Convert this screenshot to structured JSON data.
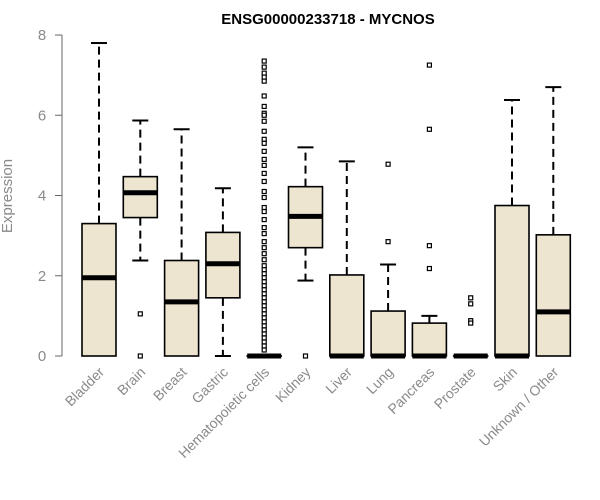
{
  "chart_data": {
    "type": "boxplot",
    "title": "ENSG00000233718 - MYCNOS",
    "xlabel": "",
    "ylabel": "Expression",
    "ylim": [
      0,
      8
    ],
    "yticks": [
      0,
      2,
      4,
      6,
      8
    ],
    "grid": false,
    "legend": "none",
    "colors": {
      "box_fill": "#ede5cf",
      "stroke": "#000000",
      "axis": "#666666",
      "tick_label": "#8a8a8a"
    },
    "categories": [
      "Bladder",
      "Brain",
      "Breast",
      "Gastric",
      "Hematopoietic cells",
      "Kidney",
      "Liver",
      "Lung",
      "Pancreas",
      "Prostate",
      "Skin",
      "Unknown / Other"
    ],
    "boxes": [
      {
        "category": "Bladder",
        "whisker_low": 0,
        "q1": 0,
        "median": 1.95,
        "q3": 3.3,
        "whisker_high": 7.8,
        "outliers": []
      },
      {
        "category": "Brain",
        "whisker_low": 2.38,
        "q1": 3.45,
        "median": 4.07,
        "q3": 4.47,
        "whisker_high": 5.87,
        "outliers": [
          1.05,
          0
        ]
      },
      {
        "category": "Breast",
        "whisker_low": 0,
        "q1": 0,
        "median": 1.35,
        "q3": 2.38,
        "whisker_high": 5.65,
        "outliers": []
      },
      {
        "category": "Gastric",
        "whisker_low": 0,
        "q1": 1.45,
        "median": 2.3,
        "q3": 3.08,
        "whisker_high": 4.18,
        "outliers": []
      },
      {
        "category": "Hematopoietic cells",
        "whisker_low": 0,
        "q1": 0,
        "median": 0,
        "q3": 0,
        "whisker_high": 0,
        "outliers": [
          7.35,
          7.2,
          7.05,
          6.95,
          6.85,
          6.48,
          6.22,
          6.05,
          6.0,
          5.85,
          5.6,
          5.4,
          5.3,
          5.1,
          4.9,
          4.75,
          4.55,
          4.35,
          4.1,
          3.95,
          3.7,
          3.6,
          3.4,
          3.2,
          3.05,
          2.85,
          2.7,
          2.55,
          2.4,
          2.25,
          2.15,
          2.05,
          1.95,
          1.85,
          1.75,
          1.65,
          1.55,
          1.45,
          1.35,
          1.25,
          1.15,
          1.05,
          0.95,
          0.85,
          0.75,
          0.65,
          0.55,
          0.45,
          0.35,
          0.25,
          0.15
        ]
      },
      {
        "category": "Kidney",
        "whisker_low": 1.88,
        "q1": 2.7,
        "median": 3.48,
        "q3": 4.22,
        "whisker_high": 5.2,
        "outliers": [
          0
        ]
      },
      {
        "category": "Liver",
        "whisker_low": 0,
        "q1": 0,
        "median": 0,
        "q3": 2.02,
        "whisker_high": 4.85,
        "outliers": []
      },
      {
        "category": "Lung",
        "whisker_low": 0,
        "q1": 0,
        "median": 0,
        "q3": 1.12,
        "whisker_high": 2.28,
        "outliers": [
          4.78,
          2.85
        ]
      },
      {
        "category": "Pancreas",
        "whisker_low": 0,
        "q1": 0,
        "median": 0,
        "q3": 0.82,
        "whisker_high": 1.0,
        "outliers": [
          7.25,
          5.65,
          2.75,
          2.18
        ]
      },
      {
        "category": "Prostate",
        "whisker_low": 0,
        "q1": 0,
        "median": 0,
        "q3": 0,
        "whisker_high": 0,
        "outliers": [
          1.45,
          1.3,
          0.88,
          0.82
        ]
      },
      {
        "category": "Skin",
        "whisker_low": 0,
        "q1": 0,
        "median": 0,
        "q3": 3.75,
        "whisker_high": 6.38,
        "outliers": []
      },
      {
        "category": "Unknown / Other",
        "whisker_low": 0,
        "q1": 0,
        "median": 1.1,
        "q3": 3.02,
        "whisker_high": 6.7,
        "outliers": []
      }
    ]
  }
}
